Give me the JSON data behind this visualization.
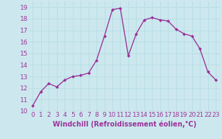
{
  "x": [
    0,
    1,
    2,
    3,
    4,
    5,
    6,
    7,
    8,
    9,
    10,
    11,
    12,
    13,
    14,
    15,
    16,
    17,
    18,
    19,
    20,
    21,
    22,
    23
  ],
  "y": [
    10.5,
    11.7,
    12.4,
    12.1,
    12.7,
    13.0,
    13.1,
    13.3,
    14.4,
    16.5,
    18.8,
    18.9,
    14.8,
    16.7,
    17.9,
    18.1,
    17.9,
    17.8,
    17.1,
    16.7,
    16.5,
    15.4,
    13.4,
    12.7
  ],
  "line_color": "#993399",
  "marker": "D",
  "marker_size": 2,
  "line_width": 1.0,
  "bg_color": "#cce8ee",
  "grid_color": "#b0d8e0",
  "xlabel": "Windchill (Refroidissement éolien,°C)",
  "xlabel_color": "#993399",
  "xlabel_fontsize": 7.0,
  "tick_color": "#993399",
  "tick_fontsize": 6.5,
  "ylim": [
    10,
    19.5
  ],
  "xlim": [
    -0.5,
    23.5
  ],
  "yticks": [
    10,
    11,
    12,
    13,
    14,
    15,
    16,
    17,
    18,
    19
  ],
  "xticks": [
    0,
    1,
    2,
    3,
    4,
    5,
    6,
    7,
    8,
    9,
    10,
    11,
    12,
    13,
    14,
    15,
    16,
    17,
    18,
    19,
    20,
    21,
    22,
    23
  ]
}
